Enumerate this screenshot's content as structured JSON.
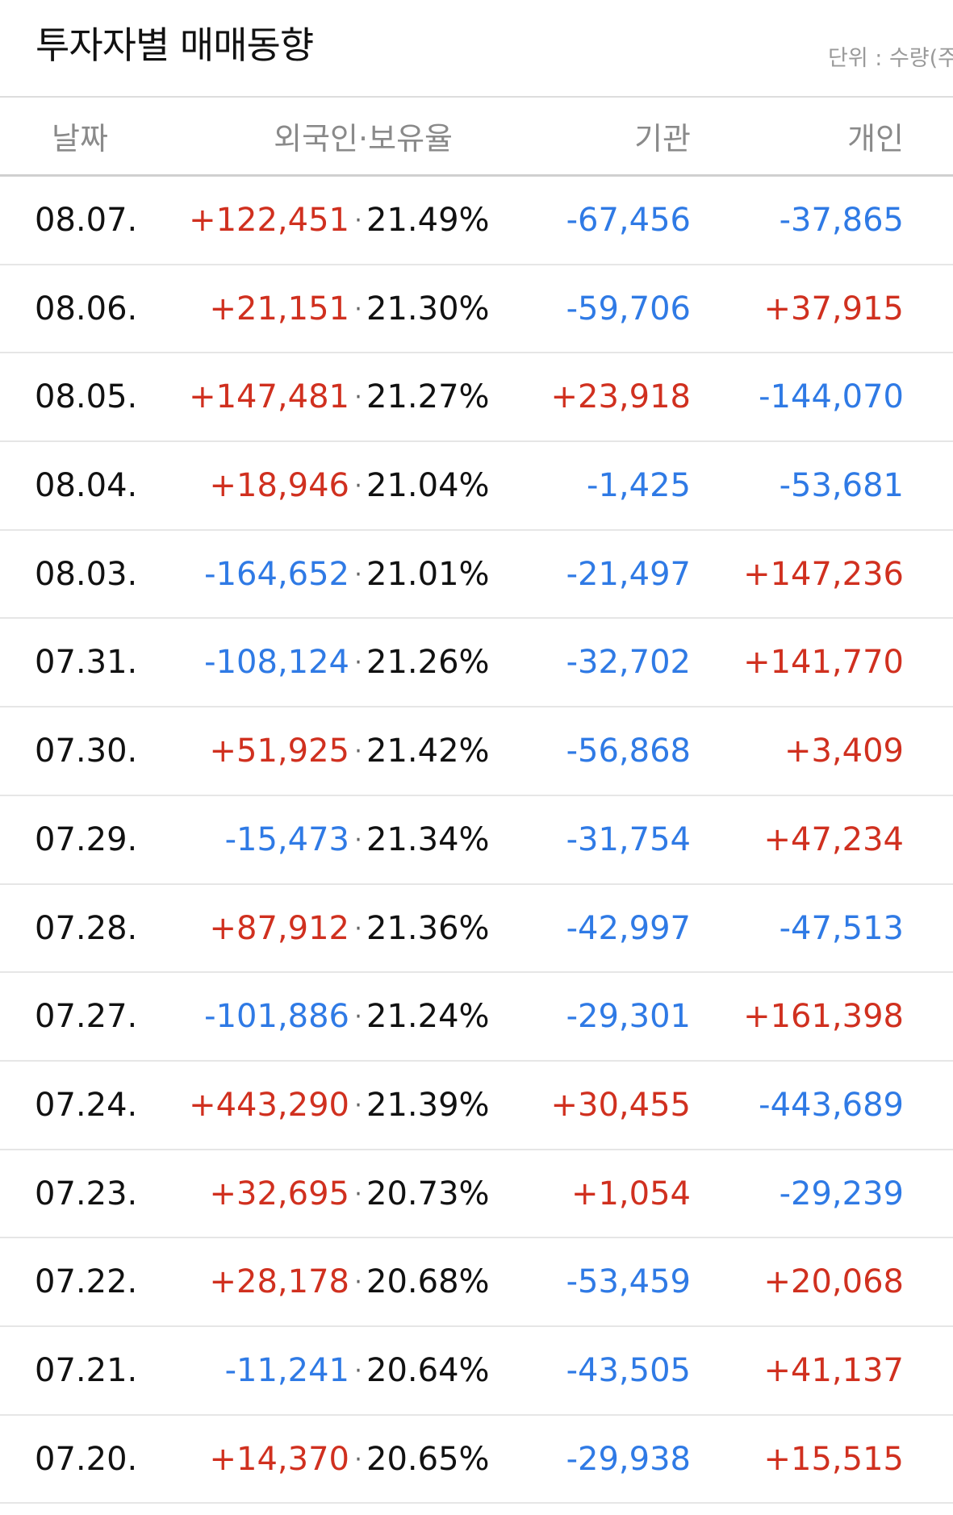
{
  "header": {
    "title": "투자자별 매매동향",
    "unit_label": "단위 : 수량(주"
  },
  "columns": {
    "date": "날짜",
    "foreign": "외국인",
    "separator": "·",
    "ratio": "보유율",
    "institution": "기관",
    "individual": "개인"
  },
  "colors": {
    "up": "#d0301f",
    "down": "#2f7ae5",
    "text": "#111111",
    "muted": "#8a8a8a"
  },
  "rows": [
    {
      "date": "08.07.",
      "foreign": "+122,451",
      "ratio": "21.49%",
      "institution": "-67,456",
      "individual": "-37,865"
    },
    {
      "date": "08.06.",
      "foreign": "+21,151",
      "ratio": "21.30%",
      "institution": "-59,706",
      "individual": "+37,915"
    },
    {
      "date": "08.05.",
      "foreign": "+147,481",
      "ratio": "21.27%",
      "institution": "+23,918",
      "individual": "-144,070"
    },
    {
      "date": "08.04.",
      "foreign": "+18,946",
      "ratio": "21.04%",
      "institution": "-1,425",
      "individual": "-53,681"
    },
    {
      "date": "08.03.",
      "foreign": "-164,652",
      "ratio": "21.01%",
      "institution": "-21,497",
      "individual": "+147,236"
    },
    {
      "date": "07.31.",
      "foreign": "-108,124",
      "ratio": "21.26%",
      "institution": "-32,702",
      "individual": "+141,770"
    },
    {
      "date": "07.30.",
      "foreign": "+51,925",
      "ratio": "21.42%",
      "institution": "-56,868",
      "individual": "+3,409"
    },
    {
      "date": "07.29.",
      "foreign": "-15,473",
      "ratio": "21.34%",
      "institution": "-31,754",
      "individual": "+47,234"
    },
    {
      "date": "07.28.",
      "foreign": "+87,912",
      "ratio": "21.36%",
      "institution": "-42,997",
      "individual": "-47,513"
    },
    {
      "date": "07.27.",
      "foreign": "-101,886",
      "ratio": "21.24%",
      "institution": "-29,301",
      "individual": "+161,398"
    },
    {
      "date": "07.24.",
      "foreign": "+443,290",
      "ratio": "21.39%",
      "institution": "+30,455",
      "individual": "-443,689"
    },
    {
      "date": "07.23.",
      "foreign": "+32,695",
      "ratio": "20.73%",
      "institution": "+1,054",
      "individual": "-29,239"
    },
    {
      "date": "07.22.",
      "foreign": "+28,178",
      "ratio": "20.68%",
      "institution": "-53,459",
      "individual": "+20,068"
    },
    {
      "date": "07.21.",
      "foreign": "-11,241",
      "ratio": "20.64%",
      "institution": "-43,505",
      "individual": "+41,137"
    },
    {
      "date": "07.20.",
      "foreign": "+14,370",
      "ratio": "20.65%",
      "institution": "-29,938",
      "individual": "+15,515"
    }
  ]
}
